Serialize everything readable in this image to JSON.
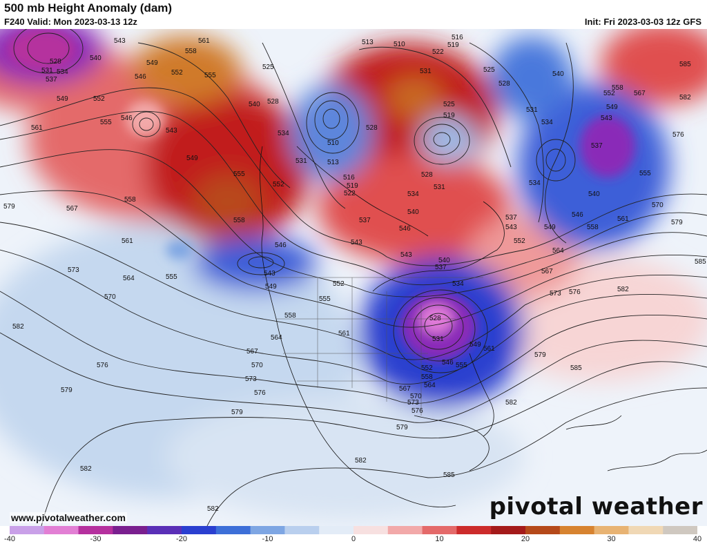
{
  "header": {
    "title": "500 mb Height Anomaly (dam)",
    "valid": "F240 Valid: Mon 2023-03-13 12z",
    "init": "Init: Fri 2023-03-03 12z GFS"
  },
  "footer": {
    "website": "www.pivotalweather.com",
    "logo": "pivotal weather"
  },
  "colorbar": {
    "ticks": [
      "-40",
      "-30",
      "-20",
      "-10",
      "0",
      "10",
      "20",
      "30",
      "40"
    ],
    "colors": [
      "#c9a0e8",
      "#e27fd4",
      "#b5309e",
      "#7a1f8f",
      "#5a2fb7",
      "#2a3fd0",
      "#3d6fd8",
      "#7ea6e3",
      "#b9cfee",
      "#e3ecf7",
      "#f7e0e0",
      "#f2a9a9",
      "#e46a6a",
      "#cc2b2b",
      "#a41a1a",
      "#b5491a",
      "#d78330",
      "#e8b373",
      "#f0d8b5",
      "#cfc8c0"
    ]
  },
  "anomalies": {
    "positive_strong": "#c11f1f",
    "positive_mid": "#e46a6a",
    "positive_light": "#f7c9c9",
    "orange": "#d07a2a",
    "negative_light": "#c5d8ef",
    "negative_mid": "#5d86dc",
    "negative_strong": "#2b3fcf",
    "purple": "#8a2bb8",
    "magenta": "#e07ad8"
  },
  "contour_labels": [
    "543",
    "540",
    "531",
    "528",
    "534",
    "537",
    "549",
    "552",
    "555",
    "546",
    "558",
    "561",
    "567",
    "564",
    "570",
    "573",
    "576",
    "579",
    "582",
    "585",
    "525",
    "516",
    "519",
    "510",
    "513",
    "522",
    "567"
  ]
}
